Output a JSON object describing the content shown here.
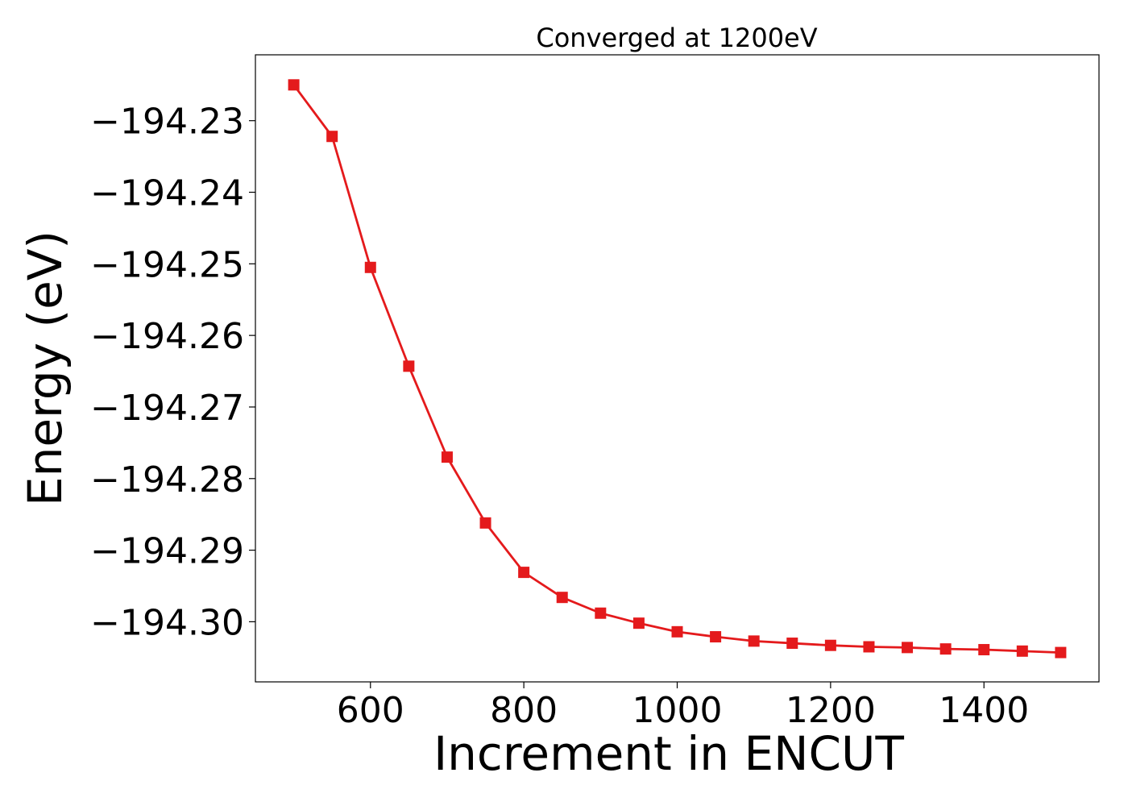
{
  "chart_data": {
    "type": "line",
    "title": "Converged at 1200eV",
    "xlabel": "Increment in ENCUT",
    "ylabel": "Energy (eV)",
    "xlim": [
      450,
      1550
    ],
    "ylim": [
      -194.3084,
      -194.2208
    ],
    "x_ticks": [
      600,
      800,
      1000,
      1200,
      1400
    ],
    "y_ticks": [
      -194.23,
      -194.24,
      -194.25,
      -194.26,
      -194.27,
      -194.28,
      -194.29,
      -194.3
    ],
    "y_tick_labels": [
      "−194.23",
      "−194.24",
      "−194.25",
      "−194.26",
      "−194.27",
      "−194.28",
      "−194.29",
      "−194.30"
    ],
    "grid": false,
    "legend": "none",
    "color": "#e41a1c",
    "marker": "square",
    "series": [
      {
        "x": [
          500,
          550,
          600,
          650,
          700,
          750,
          800,
          850,
          900,
          950,
          1000,
          1050,
          1100,
          1150,
          1200,
          1250,
          1300,
          1350,
          1400,
          1450,
          1500
        ],
        "values": [
          -194.225,
          -194.2322,
          -194.2505,
          -194.2643,
          -194.277,
          -194.2862,
          -194.2931,
          -194.2966,
          -194.2988,
          -194.3002,
          -194.3014,
          -194.3021,
          -194.3027,
          -194.303,
          -194.3033,
          -194.3035,
          -194.3036,
          -194.3038,
          -194.3039,
          -194.3041,
          -194.3043
        ]
      }
    ]
  }
}
